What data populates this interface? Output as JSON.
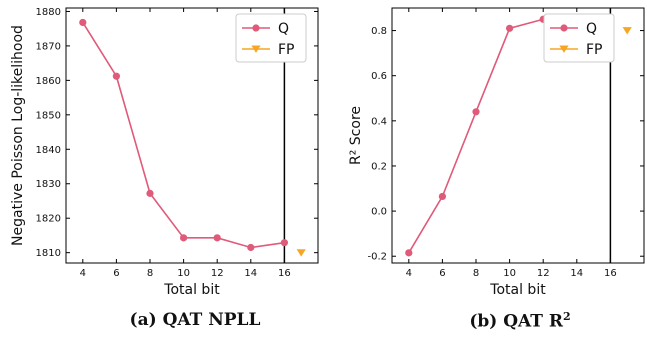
{
  "chart_data": [
    {
      "type": "line",
      "xlabel": "Total bit",
      "ylabel": "Negative Poisson Log-likelihood",
      "xlim": [
        3,
        18
      ],
      "ylim": [
        1807,
        1881
      ],
      "xticks": [
        4,
        6,
        8,
        10,
        12,
        14,
        16
      ],
      "yticks": [
        1810,
        1820,
        1830,
        1840,
        1850,
        1860,
        1870,
        1880
      ],
      "vline_x": 16,
      "legend_position": "top-right",
      "grid": false,
      "series": [
        {
          "name": "Q",
          "color": "#e05a7a",
          "marker": "circle",
          "x": [
            4,
            6,
            8,
            10,
            12,
            14,
            16
          ],
          "y": [
            1876.8,
            1861.2,
            1827.2,
            1814.3,
            1814.3,
            1811.5,
            1812.9
          ]
        },
        {
          "name": "FP",
          "color": "#f5a623",
          "marker": "triangle-down",
          "x": [
            17
          ],
          "y": [
            1810.0
          ]
        }
      ]
    },
    {
      "type": "line",
      "xlabel": "Total bit",
      "ylabel": "R² Score",
      "xlim": [
        3,
        18
      ],
      "ylim": [
        -0.23,
        0.9
      ],
      "xticks": [
        4,
        6,
        8,
        10,
        12,
        14,
        16
      ],
      "yticks": [
        -0.2,
        0.0,
        0.2,
        0.4,
        0.6,
        0.8
      ],
      "ytick_labels": [
        "-0.2",
        "0.0",
        "0.2",
        "0.4",
        "0.6",
        "0.8"
      ],
      "vline_x": 16,
      "legend_position": "top-left",
      "grid": false,
      "series": [
        {
          "name": "Q",
          "color": "#e05a7a",
          "marker": "circle",
          "x": [
            4,
            6,
            8,
            10,
            12,
            14,
            16
          ],
          "y": [
            -0.185,
            0.065,
            0.44,
            0.81,
            0.85,
            0.835,
            0.8
          ]
        },
        {
          "name": "FP",
          "color": "#f5a623",
          "marker": "triangle-down",
          "x": [
            17
          ],
          "y": [
            0.8
          ]
        }
      ]
    }
  ],
  "captions": {
    "a": "(a) QAT NPLL",
    "b_text": "(b) QAT R",
    "b_sup": "2"
  }
}
